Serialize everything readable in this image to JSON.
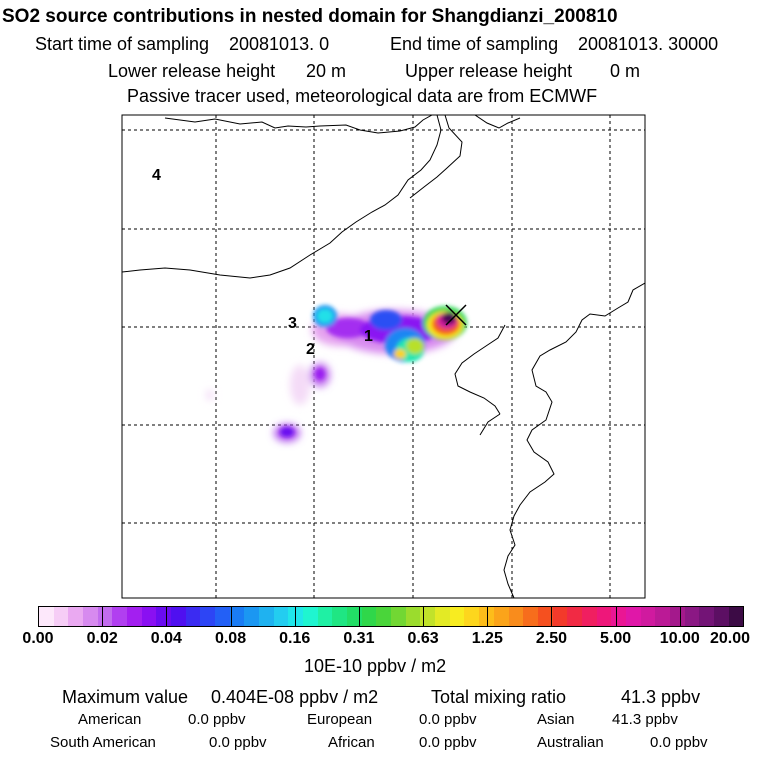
{
  "header": {
    "title": "SO2 source contributions in nested domain for Shangdianzi_200810",
    "start_label": "Start time of sampling",
    "start_value": "20081013.    0",
    "end_label": "End time of sampling",
    "end_value": "20081013. 30000",
    "lower_label": "Lower release height",
    "lower_value": "20 m",
    "upper_label": "Upper release height",
    "upper_value": "0 m",
    "note": "Passive tracer used, meteorological data are from ECMWF"
  },
  "map": {
    "source_labels": [
      "1",
      "2",
      "3",
      "4"
    ],
    "station_marker": "x-icon"
  },
  "colorbar": {
    "ticks": [
      "0.00",
      "0.02",
      "0.04",
      "0.08",
      "0.16",
      "0.31",
      "0.63",
      "1.25",
      "2.50",
      "5.00",
      "10.00",
      "20.00"
    ],
    "unit": "10E-10 ppbv / m2",
    "colors": [
      "#fde8fb",
      "#f6cdf6",
      "#eaa9f1",
      "#d78aef",
      "#c26cee",
      "#b13ff0",
      "#a31ff0",
      "#8a10f2",
      "#6a0cf0",
      "#4f10f0",
      "#3b2bf2",
      "#2d45f5",
      "#2360f6",
      "#1a7cf4",
      "#1b97f2",
      "#1fb2f0",
      "#23cdf0",
      "#20e6ea",
      "#1ff5d0",
      "#1ff0a4",
      "#1fe683",
      "#22de66",
      "#2fd74a",
      "#4ad53a",
      "#72d733",
      "#9bdc2d",
      "#c1e22a",
      "#e3ea25",
      "#f8ec20",
      "#fdd61d",
      "#fdbd1a",
      "#fba41a",
      "#f98c1c",
      "#f76d1c",
      "#f5501f",
      "#f33a2a",
      "#f12a44",
      "#f01f60",
      "#ee177a",
      "#ea1694",
      "#e017a8",
      "#d01a9f",
      "#bb1a96",
      "#a4198c",
      "#8b1884",
      "#731476",
      "#5c0f63",
      "#3c0b45"
    ]
  },
  "stats": {
    "max_label": "Maximum value",
    "max_value": "0.404E-08 ppbv / m2",
    "total_label": "Total mixing ratio",
    "total_value": "41.3 ppbv"
  },
  "regions": [
    {
      "name": "American",
      "value": "0.0 ppbv"
    },
    {
      "name": "European",
      "value": "0.0 ppbv"
    },
    {
      "name": "Asian",
      "value": "41.3 ppbv"
    },
    {
      "name": "South American",
      "value": "0.0 ppbv"
    },
    {
      "name": "African",
      "value": "0.0 ppbv"
    },
    {
      "name": "Australian",
      "value": "0.0 ppbv"
    }
  ]
}
